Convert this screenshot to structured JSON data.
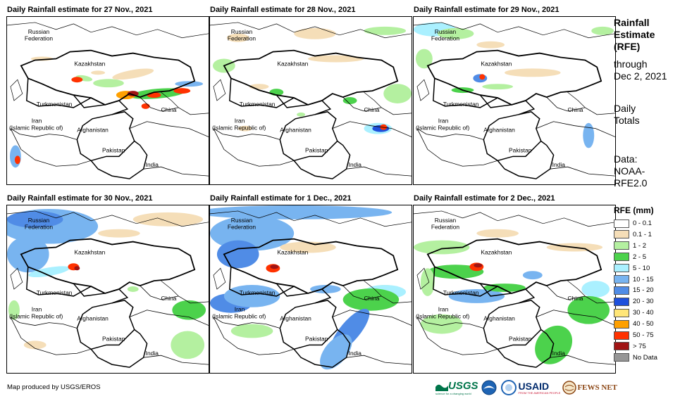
{
  "panels": [
    {
      "title": "Daily Rainfall estimate for 27 Nov., 2021"
    },
    {
      "title": "Daily Rainfall estimate for 28 Nov., 2021"
    },
    {
      "title": "Daily Rainfall estimate for 29 Nov., 2021"
    },
    {
      "title": "Daily Rainfall estimate for 30 Nov., 2021"
    },
    {
      "title": "Daily Rainfall estimate for 1 Dec., 2021"
    },
    {
      "title": "Daily Rainfall estimate for 2 Dec., 2021"
    }
  ],
  "map_labels": {
    "russia_1": "Russian",
    "russia_2": "Federation",
    "kazakhstan": "Kazakhstan",
    "turkmenistan": "Turkmenistan",
    "iran_1": "Iran",
    "iran_2": "(Islamic Republic of)",
    "afghanistan": "Afghanistan",
    "pakistan": "Pakistan",
    "china": "China",
    "india": "India"
  },
  "side_text": {
    "line1": "Rainfall",
    "line2": "Estimate",
    "line3": "(RFE)",
    "line4": "through",
    "line5": "Dec 2, 2021",
    "line6": "Daily",
    "line7": "Totals",
    "line8": "Data:",
    "line9": "NOAA-",
    "line10": "RFE2.0"
  },
  "legend": {
    "title": "RFE (mm)",
    "items": [
      {
        "label": "0 - 0.1",
        "color": "#ffffff"
      },
      {
        "label": "0.1 - 1",
        "color": "#f5deb8"
      },
      {
        "label": "1 - 2",
        "color": "#b4f0a0"
      },
      {
        "label": "2 - 5",
        "color": "#4cd24c"
      },
      {
        "label": "5 - 10",
        "color": "#aaf0ff"
      },
      {
        "label": "10 - 15",
        "color": "#78b4f0"
      },
      {
        "label": "15 - 20",
        "color": "#508ce6"
      },
      {
        "label": "20 - 30",
        "color": "#1e50dc"
      },
      {
        "label": "30 - 40",
        "color": "#ffe678"
      },
      {
        "label": "40 - 50",
        "color": "#ffa000"
      },
      {
        "label": "50 - 75",
        "color": "#ff3200"
      },
      {
        "label": "> 75",
        "color": "#a01414"
      },
      {
        "label": "No Data",
        "color": "#969696"
      }
    ]
  },
  "credit": "Map produced by USGS/EROS",
  "logos": {
    "usgs": "USGS",
    "usgs_tag": "science for a changing world",
    "usaid": "USAID",
    "usaid_tag": "FROM THE AMERICAN PEOPLE",
    "fewsnet": "FEWS NET"
  }
}
